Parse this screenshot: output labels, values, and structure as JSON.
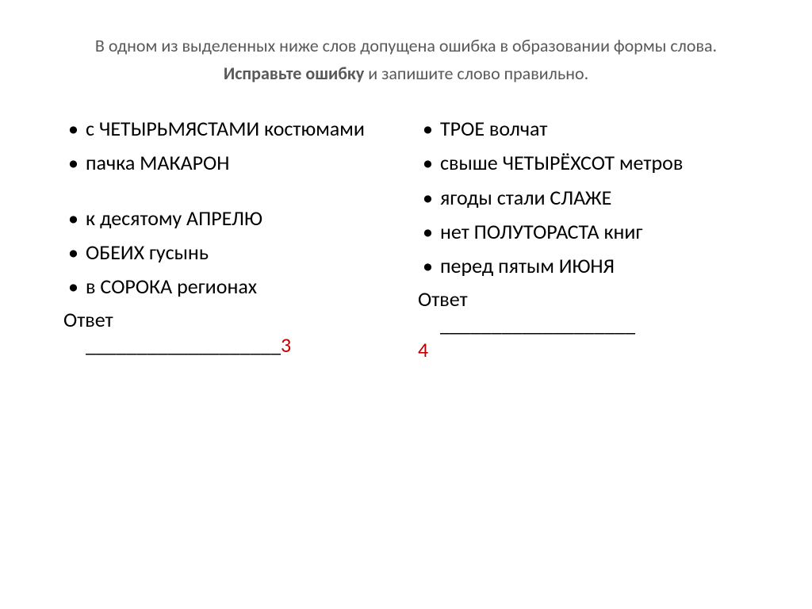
{
  "title_part1": "В одном из выделенных ниже слов допущена ошибка в образовании формы слова. ",
  "title_bold": "Исправьте ошибку",
  "title_part2": " и запишите слово правильно",
  "title_dot": ".",
  "left": {
    "items": [
      "с ЧЕТЫРЬМЯСТАМИ костюмами",
      "пачка МАКАРОН",
      "к десятому АПРЕЛЮ",
      "ОБЕИХ гусынь",
      "в СОРОКА регионах"
    ],
    "answer_label": "Ответ",
    "answer_blank": "___________________",
    "answer_num": "3"
  },
  "right": {
    "items": [
      "ТРОЕ волчат",
      "свыше ЧЕТЫРЁХСОТ метров",
      "ягоды стали СЛАЖЕ",
      "нет ПОЛУТОРАСТА книг",
      "перед пятым ИЮНЯ"
    ],
    "answer_label": "Ответ",
    "answer_blank": "___________________",
    "answer_num": "4"
  }
}
